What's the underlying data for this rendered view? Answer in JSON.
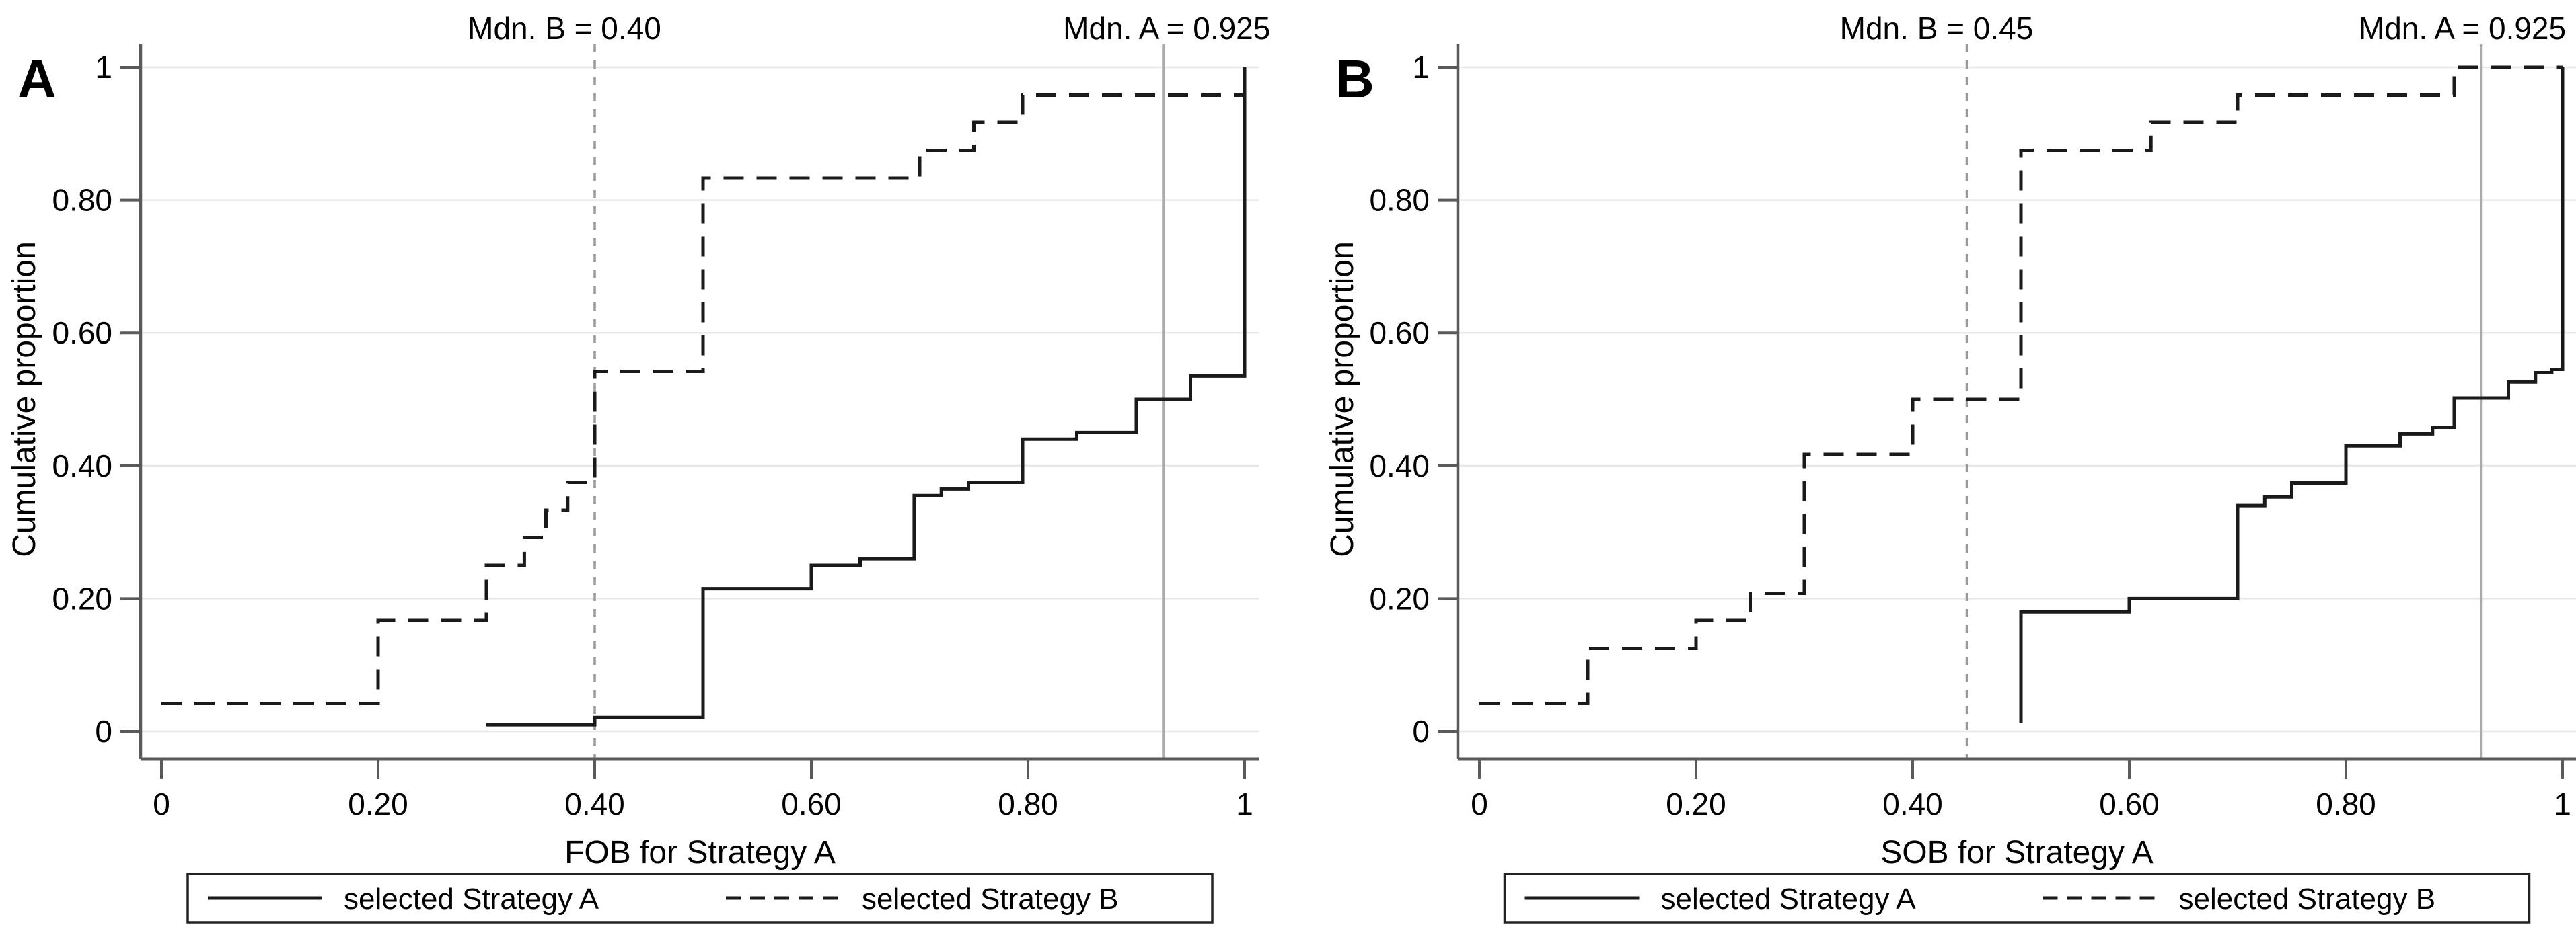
{
  "figure": {
    "background": "#ffffff",
    "text_color": "#000000",
    "axis_color": "#5a5a5a",
    "grid_color": "#e8e8e8",
    "series_color": "#1a1a1a",
    "ref_dashed_color": "#999999",
    "ref_solid_color": "#aaaaaa",
    "legend_border_color": "#222222"
  },
  "chart_data": [
    {
      "type": "line",
      "subtype": "step-ecdf",
      "panel_label": "A",
      "xlabel": "FOB for Strategy A",
      "ylabel": "Cumulative proportion",
      "xlim": [
        0,
        1
      ],
      "ylim": [
        0,
        1
      ],
      "grid": true,
      "legend_position": "bottom",
      "xticks": {
        "values": [
          0,
          0.2,
          0.4,
          0.6,
          0.8,
          1
        ],
        "labels": [
          "0",
          "0.20",
          "0.40",
          "0.60",
          "0.80",
          "1"
        ]
      },
      "yticks": {
        "values": [
          0,
          0.2,
          0.4,
          0.6,
          0.8,
          1
        ],
        "labels": [
          "0",
          "0.20",
          "0.40",
          "0.60",
          "0.80",
          "1"
        ]
      },
      "ref_lines": [
        {
          "x": 0.4,
          "style": "dashed",
          "label": "Mdn. B = 0.40",
          "label_dx": -45
        },
        {
          "x": 0.925,
          "style": "solid",
          "label": "Mdn. A = 0.925",
          "label_dx": 5
        }
      ],
      "series": [
        {
          "name": "selected Strategy A",
          "style": "solid",
          "steps": [
            [
              0.3,
              0.01
            ],
            [
              0.4,
              0.021
            ],
            [
              0.5,
              0.215
            ],
            [
              0.6,
              0.25
            ],
            [
              0.645,
              0.26
            ],
            [
              0.695,
              0.355
            ],
            [
              0.72,
              0.365
            ],
            [
              0.745,
              0.375
            ],
            [
              0.795,
              0.44
            ],
            [
              0.845,
              0.45
            ],
            [
              0.9,
              0.5
            ],
            [
              0.95,
              0.535
            ],
            [
              1.0,
              1.0
            ]
          ]
        },
        {
          "name": "selected Strategy B",
          "style": "dashed",
          "steps": [
            [
              0.0,
              0.042
            ],
            [
              0.2,
              0.167
            ],
            [
              0.3,
              0.25
            ],
            [
              0.335,
              0.292
            ],
            [
              0.355,
              0.333
            ],
            [
              0.375,
              0.375
            ],
            [
              0.4,
              0.542
            ],
            [
              0.5,
              0.833
            ],
            [
              0.7,
              0.875
            ],
            [
              0.75,
              0.917
            ],
            [
              0.795,
              0.958
            ],
            [
              1.0,
              1.0
            ]
          ]
        }
      ]
    },
    {
      "type": "line",
      "subtype": "step-ecdf",
      "panel_label": "B",
      "xlabel": "SOB for Strategy A",
      "ylabel": "Cumulative proportion",
      "xlim": [
        0,
        1
      ],
      "ylim": [
        0,
        1
      ],
      "grid": true,
      "legend_position": "bottom",
      "xticks": {
        "values": [
          0,
          0.2,
          0.4,
          0.6,
          0.8,
          1
        ],
        "labels": [
          "0",
          "0.20",
          "0.40",
          "0.60",
          "0.80",
          "1"
        ]
      },
      "yticks": {
        "values": [
          0,
          0.2,
          0.4,
          0.6,
          0.8,
          1
        ],
        "labels": [
          "0",
          "0.20",
          "0.40",
          "0.60",
          "0.80",
          "1"
        ]
      },
      "ref_lines": [
        {
          "x": 0.45,
          "style": "dashed",
          "label": "Mdn. B = 0.45",
          "label_dx": -45
        },
        {
          "x": 0.925,
          "style": "solid",
          "label": "Mdn. A = 0.925",
          "label_dx": 5
        }
      ],
      "series": [
        {
          "name": "selected Strategy A",
          "style": "solid",
          "steps": [
            [
              0.5,
              0.013
            ],
            [
              0.5,
              0.18
            ],
            [
              0.6,
              0.2
            ],
            [
              0.7,
              0.34
            ],
            [
              0.725,
              0.353
            ],
            [
              0.75,
              0.374
            ],
            [
              0.8,
              0.43
            ],
            [
              0.85,
              0.448
            ],
            [
              0.88,
              0.458
            ],
            [
              0.9,
              0.502
            ],
            [
              0.95,
              0.526
            ],
            [
              0.975,
              0.54
            ],
            [
              0.99,
              0.545
            ],
            [
              1.0,
              1.0
            ]
          ]
        },
        {
          "name": "selected Strategy B",
          "style": "dashed",
          "steps": [
            [
              0.0,
              0.042
            ],
            [
              0.1,
              0.125
            ],
            [
              0.2,
              0.167
            ],
            [
              0.25,
              0.208
            ],
            [
              0.3,
              0.417
            ],
            [
              0.4,
              0.5
            ],
            [
              0.5,
              0.875
            ],
            [
              0.62,
              0.917
            ],
            [
              0.7,
              0.958
            ],
            [
              0.9,
              1.0
            ],
            [
              1.0,
              1.0
            ]
          ]
        }
      ]
    }
  ],
  "legend": {
    "items": [
      {
        "label": "selected Strategy A",
        "line": "solid"
      },
      {
        "label": "selected Strategy B",
        "line": "dashed"
      }
    ]
  }
}
